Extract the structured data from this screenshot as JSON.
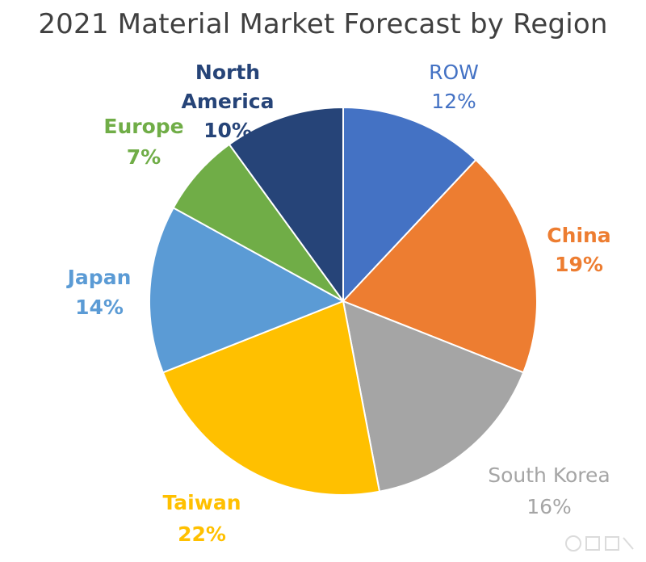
{
  "chart_data": {
    "type": "pie",
    "title": "2021 Material Market Forecast by Region",
    "slices": [
      {
        "label": "ROW",
        "value": 12,
        "display": "12%",
        "color": "#4472C4",
        "label_color": "#4472C4",
        "bold": false
      },
      {
        "label": "China",
        "value": 19,
        "display": "19%",
        "color": "#ED7D31",
        "label_color": "#ED7D31",
        "bold": true
      },
      {
        "label": "South Korea",
        "value": 16,
        "display": "16%",
        "color": "#A5A5A5",
        "label_color": "#A5A5A5",
        "bold": false
      },
      {
        "label": "Taiwan",
        "value": 22,
        "display": "22%",
        "color": "#FFC000",
        "label_color": "#FFC000",
        "bold": true
      },
      {
        "label": "Japan",
        "value": 14,
        "display": "14%",
        "color": "#5B9BD5",
        "label_color": "#5B9BD5",
        "bold": true
      },
      {
        "label": "Europe",
        "value": 7,
        "display": "7%",
        "color": "#70AD47",
        "label_color": "#70AD47",
        "bold": true
      },
      {
        "label": "North America",
        "value": 10,
        "display": "10%",
        "color": "#264478",
        "label_color": "#264478",
        "bold": true
      }
    ],
    "start_angle_deg": 0,
    "direction": "clockwise",
    "legend": "none",
    "data_labels": "outside"
  },
  "watermark_icon": "watermark-logo-icon"
}
